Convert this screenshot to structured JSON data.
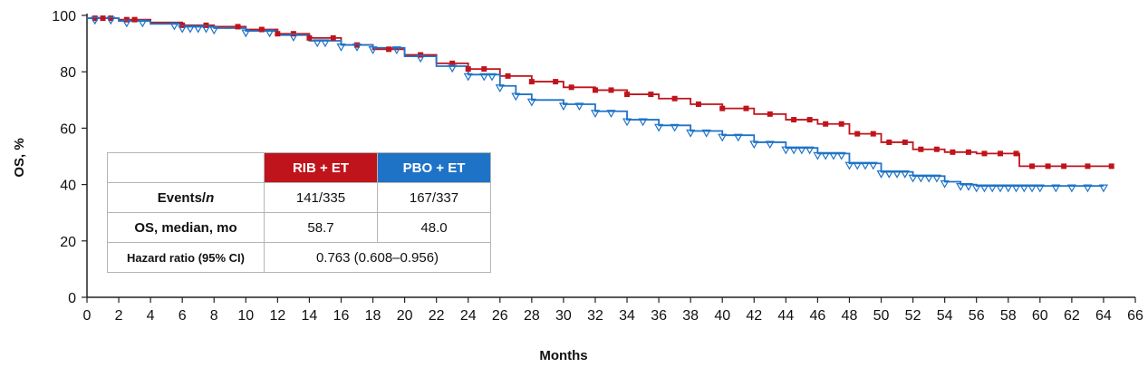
{
  "chart_data": {
    "type": "line",
    "chart_subtype": "kaplan-meier",
    "title": "",
    "xlabel": "Months",
    "ylabel": "OS, %",
    "xlim": [
      0,
      66
    ],
    "ylim": [
      0,
      100
    ],
    "x_ticks": [
      0,
      2,
      4,
      6,
      8,
      10,
      12,
      14,
      16,
      18,
      20,
      22,
      24,
      26,
      28,
      30,
      32,
      34,
      36,
      38,
      40,
      42,
      44,
      46,
      48,
      50,
      52,
      54,
      56,
      58,
      60,
      62,
      64,
      66
    ],
    "y_ticks": [
      0,
      20,
      40,
      60,
      80,
      100
    ],
    "series": [
      {
        "name": "RIB + ET",
        "color": "#c0141c",
        "censor_marker": "square",
        "x": [
          0,
          2,
          4,
          6,
          8,
          10,
          12,
          14,
          16,
          18,
          20,
          22,
          24,
          26,
          28,
          30,
          32,
          34,
          36,
          38,
          40,
          42,
          44,
          46,
          48,
          50,
          52,
          54,
          56,
          58,
          58.7,
          60,
          62,
          64.5
        ],
        "y": [
          99,
          98.5,
          97.5,
          96.5,
          96,
          95,
          93.5,
          92,
          89.5,
          88,
          86,
          83,
          81,
          78.5,
          76.5,
          74.5,
          73.5,
          72,
          70.5,
          68.5,
          67,
          65,
          63,
          61.5,
          58,
          55,
          52.5,
          51.5,
          51,
          51,
          46.5,
          46.5,
          46.5,
          46.5
        ],
        "censor_x": [
          0.5,
          1,
          1.5,
          2.5,
          3,
          6,
          7.5,
          9.5,
          11,
          12,
          13,
          14,
          15.5,
          17,
          19,
          21,
          23,
          24,
          25,
          26.5,
          28,
          29.5,
          30.5,
          32,
          33,
          34,
          35.5,
          37,
          38.5,
          40,
          41.5,
          43,
          44.5,
          45.5,
          46.5,
          47.5,
          48.5,
          49.5,
          50.5,
          51.5,
          52.5,
          53.5,
          54.5,
          55.5,
          56.5,
          57.5,
          58.5,
          59.5,
          60.5,
          61.5,
          63,
          64.5
        ]
      },
      {
        "name": "PBO + ET",
        "color": "#1f73c7",
        "censor_marker": "triangle-down",
        "x": [
          0,
          2,
          4,
          6,
          8,
          10,
          12,
          14,
          16,
          18,
          20,
          22,
          24,
          26,
          27,
          28,
          30,
          32,
          34,
          36,
          38,
          40,
          42,
          44,
          46,
          48,
          50,
          52,
          54,
          55,
          56,
          58,
          60,
          62,
          64
        ],
        "y": [
          99,
          98,
          97,
          96,
          95.5,
          94.5,
          93,
          91,
          89.5,
          88.5,
          85.5,
          82,
          79,
          75,
          72,
          70,
          68.5,
          66,
          63,
          61,
          59,
          57.5,
          55,
          53,
          51,
          47.5,
          44.5,
          43,
          41,
          40,
          39.5,
          39.5,
          39.5,
          39.5,
          39.5
        ],
        "censor_x": [
          0.5,
          1.5,
          2.5,
          3.5,
          5.5,
          6,
          6.5,
          7,
          7.5,
          8,
          10,
          11.5,
          13,
          14.5,
          15,
          16,
          17,
          18,
          19.5,
          21,
          23,
          24,
          25,
          25.5,
          26,
          27,
          28,
          30,
          31,
          32,
          33,
          34,
          35,
          36,
          37,
          38,
          39,
          40,
          41,
          42,
          43,
          44,
          44.5,
          45,
          45.5,
          46,
          46.5,
          47,
          47.5,
          48,
          48.5,
          49,
          49.5,
          50,
          50.5,
          51,
          51.5,
          52,
          52.5,
          53,
          53.5,
          54,
          55,
          55.5,
          56,
          56.5,
          57,
          57.5,
          58,
          58.5,
          59,
          59.5,
          60,
          61,
          62,
          63,
          64
        ]
      }
    ],
    "table": {
      "headers": [
        "RIB + ET",
        "PBO + ET"
      ],
      "rows": [
        {
          "label_main": "Events/",
          "label_italic": "n",
          "rib": "141/335",
          "pbo": "167/337"
        },
        {
          "label_main": "OS, median, mo",
          "label_italic": "",
          "rib": "58.7",
          "pbo": "48.0"
        }
      ],
      "hr_label": "Hazard ratio (95% CI)",
      "hr_value": "0.763 (0.608–0.956)"
    }
  }
}
